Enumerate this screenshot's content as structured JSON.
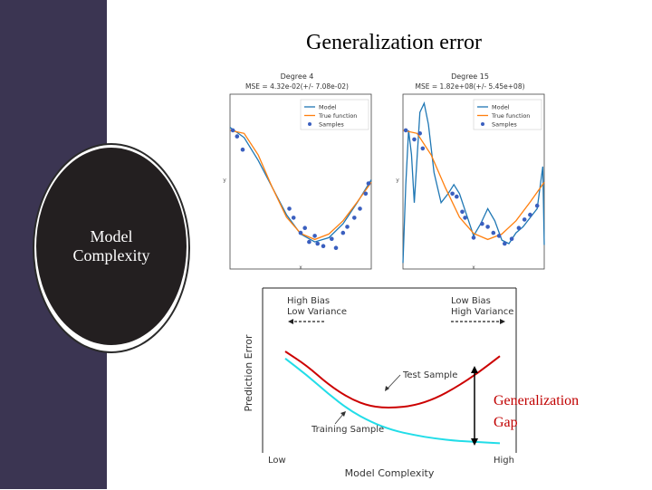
{
  "slide": {
    "title": "Generalization error",
    "circle_label_line1": "Model",
    "circle_label_line2": "Complexity",
    "gap_label_line1": "Generalization",
    "gap_label_line2": "Gap",
    "sidebar_color": "#3b3552",
    "circle_color": "#231f20"
  },
  "chart_data": [
    {
      "type": "line",
      "title": "Degree 4",
      "subtitle": "MSE = 4.32e-02(+/- 7.08e-02)",
      "xlabel": "x",
      "ylabel": "y",
      "legend": [
        "Model",
        "True function",
        "Samples"
      ],
      "legend_position": "top-right",
      "xlim": [
        0,
        1
      ],
      "ylim": [
        -1.3,
        1.6
      ],
      "series": [
        {
          "name": "Model",
          "color": "#1f77b4",
          "x": [
            0,
            0.1,
            0.2,
            0.3,
            0.4,
            0.5,
            0.6,
            0.7,
            0.8,
            0.9,
            1.0
          ],
          "y": [
            1.05,
            0.88,
            0.5,
            0.05,
            -0.4,
            -0.72,
            -0.85,
            -0.78,
            -0.55,
            -0.2,
            0.18
          ]
        },
        {
          "name": "True function",
          "color": "#ff7f0e",
          "x": [
            0,
            0.1,
            0.2,
            0.3,
            0.4,
            0.5,
            0.6,
            0.7,
            0.8,
            0.9,
            1.0
          ],
          "y": [
            1.0,
            0.95,
            0.59,
            0.05,
            -0.44,
            -0.71,
            -0.81,
            -0.72,
            -0.5,
            -0.19,
            0.14
          ]
        },
        {
          "name": "Samples",
          "color": "#3a5fbf",
          "marker": "point",
          "x": [
            0.02,
            0.05,
            0.09,
            0.42,
            0.45,
            0.5,
            0.53,
            0.56,
            0.6,
            0.62,
            0.66,
            0.72,
            0.75,
            0.8,
            0.83,
            0.88,
            0.92,
            0.96,
            0.98
          ],
          "y": [
            1.0,
            0.9,
            0.68,
            -0.3,
            -0.45,
            -0.7,
            -0.62,
            -0.85,
            -0.75,
            -0.88,
            -0.92,
            -0.8,
            -0.95,
            -0.7,
            -0.6,
            -0.45,
            -0.3,
            -0.05,
            0.12
          ]
        }
      ]
    },
    {
      "type": "line",
      "title": "Degree 15",
      "subtitle": "MSE = 1.82e+08(+/- 5.45e+08)",
      "xlabel": "x",
      "ylabel": "y",
      "legend": [
        "Model",
        "True function",
        "Samples"
      ],
      "legend_position": "top-right",
      "xlim": [
        0,
        1
      ],
      "ylim": [
        -1.3,
        1.6
      ],
      "series": [
        {
          "name": "Model",
          "color": "#1f77b4",
          "x": [
            0,
            0.02,
            0.04,
            0.06,
            0.08,
            0.1,
            0.12,
            0.15,
            0.18,
            0.22,
            0.27,
            0.32,
            0.36,
            0.4,
            0.45,
            0.5,
            0.55,
            0.6,
            0.65,
            0.7,
            0.75,
            0.8,
            0.85,
            0.9,
            0.95,
            0.97,
            0.99,
            1.0
          ],
          "y": [
            -1.2,
            0.1,
            1.0,
            0.6,
            -0.2,
            0.55,
            1.3,
            1.45,
            1.1,
            0.3,
            -0.2,
            -0.05,
            0.1,
            -0.05,
            -0.4,
            -0.75,
            -0.55,
            -0.3,
            -0.5,
            -0.82,
            -0.88,
            -0.7,
            -0.6,
            -0.45,
            -0.3,
            0.05,
            0.4,
            -0.9
          ]
        },
        {
          "name": "True function",
          "color": "#ff7f0e",
          "x": [
            0,
            0.1,
            0.2,
            0.3,
            0.4,
            0.5,
            0.6,
            0.7,
            0.8,
            0.9,
            1.0
          ],
          "y": [
            1.0,
            0.95,
            0.59,
            0.05,
            -0.44,
            -0.71,
            -0.81,
            -0.72,
            -0.5,
            -0.19,
            0.14
          ]
        },
        {
          "name": "Samples",
          "color": "#3a5fbf",
          "marker": "point",
          "x": [
            0.02,
            0.08,
            0.12,
            0.14,
            0.35,
            0.38,
            0.42,
            0.44,
            0.5,
            0.56,
            0.6,
            0.64,
            0.68,
            0.72,
            0.77,
            0.82,
            0.86,
            0.9,
            0.95
          ],
          "y": [
            1.0,
            0.85,
            0.95,
            0.7,
            -0.05,
            -0.1,
            -0.35,
            -0.45,
            -0.78,
            -0.55,
            -0.6,
            -0.7,
            -0.75,
            -0.88,
            -0.8,
            -0.62,
            -0.48,
            -0.4,
            -0.25
          ]
        }
      ]
    },
    {
      "type": "line",
      "xlabel": "Model Complexity",
      "ylabel": "Prediction Error",
      "x_ticks": [
        "Low",
        "High"
      ],
      "annotations": {
        "left_top": "High Bias",
        "left_bottom": "Low Variance",
        "right_top": "Low Bias",
        "right_bottom": "High Variance",
        "test": "Test Sample",
        "train": "Training Sample"
      },
      "xlim": [
        0,
        1
      ],
      "ylim": [
        0,
        1
      ],
      "series": [
        {
          "name": "Test Sample",
          "color": "#cc0000",
          "x": [
            0.0,
            0.1,
            0.2,
            0.3,
            0.4,
            0.5,
            0.6,
            0.7,
            0.8,
            0.9,
            1.0
          ],
          "y": [
            0.8,
            0.68,
            0.52,
            0.4,
            0.33,
            0.32,
            0.34,
            0.4,
            0.5,
            0.62,
            0.76
          ]
        },
        {
          "name": "Training Sample",
          "color": "#22dde8",
          "x": [
            0.0,
            0.1,
            0.2,
            0.3,
            0.4,
            0.5,
            0.6,
            0.7,
            0.8,
            0.9,
            1.0
          ],
          "y": [
            0.74,
            0.6,
            0.44,
            0.3,
            0.2,
            0.13,
            0.09,
            0.06,
            0.04,
            0.03,
            0.02
          ]
        }
      ]
    }
  ]
}
